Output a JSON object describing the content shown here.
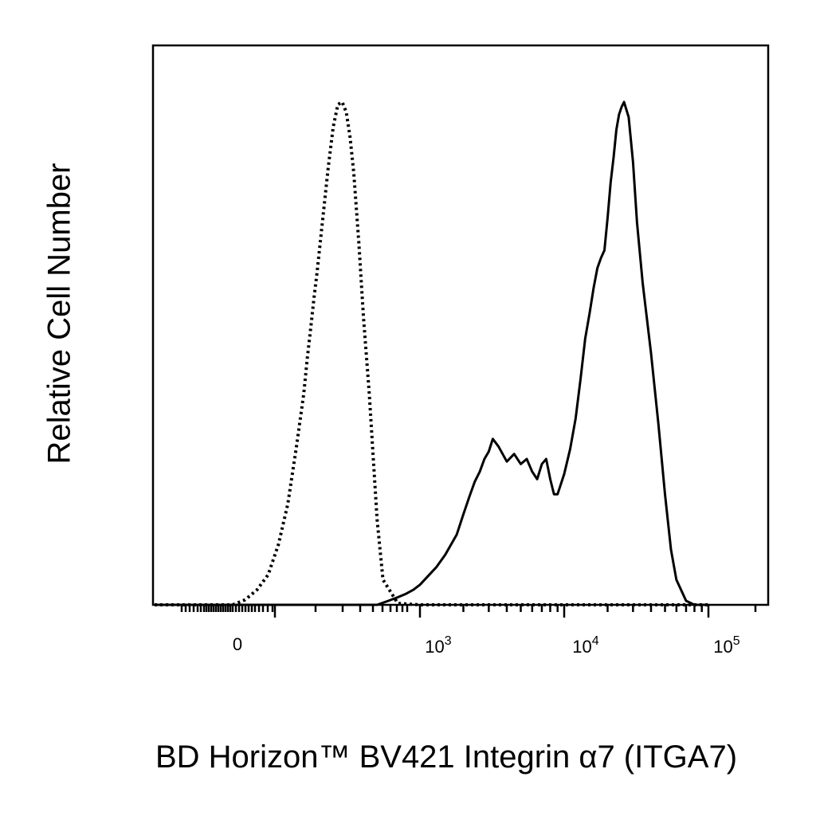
{
  "chart_data": {
    "type": "line",
    "title": "",
    "xlabel": "BD Horizon™ BV421 Integrin α7 (ITGA7)",
    "ylabel": "Relative Cell Number",
    "x_scale": "biexponential",
    "x_ticks": [
      {
        "label": "0",
        "value": 0
      },
      {
        "label": "10",
        "exp": "3",
        "value": 1000
      },
      {
        "label": "10",
        "exp": "4",
        "value": 10000
      },
      {
        "label": "10",
        "exp": "5",
        "value": 100000
      }
    ],
    "ylim": [
      0,
      100
    ],
    "grid": false,
    "legend": "none",
    "series": [
      {
        "style": "dotted",
        "color": "#000000",
        "x": [
          -800,
          -300,
          0,
          10,
          20,
          40,
          60,
          80,
          100,
          120,
          140,
          150,
          160,
          170,
          180,
          200,
          220,
          240,
          260,
          280,
          300,
          320,
          340,
          370,
          400,
          440,
          470,
          500,
          550,
          700,
          1000,
          3000,
          10000,
          50000,
          100000
        ],
        "y": [
          0,
          0,
          0,
          0.5,
          1,
          3,
          6,
          12,
          20,
          31,
          42,
          49,
          55,
          61,
          66,
          77,
          87,
          95,
          99.5,
          100,
          98,
          93,
          86,
          72,
          57,
          42,
          29,
          17,
          5,
          0.3,
          0,
          0,
          0,
          0,
          0
        ]
      },
      {
        "style": "solid",
        "color": "#000000",
        "x": [
          -800,
          0,
          300,
          500,
          600,
          700,
          800,
          900,
          1000,
          1300,
          1500,
          1800,
          2000,
          2200,
          2400,
          2600,
          2800,
          3000,
          3200,
          3500,
          4000,
          4500,
          5000,
          5500,
          6000,
          6500,
          7000,
          7500,
          8000,
          8500,
          9000,
          10000,
          11000,
          12000,
          13000,
          14000,
          15000,
          16000,
          17000,
          18000,
          19000,
          20000,
          21000,
          22000,
          23000,
          24000,
          25000,
          26000,
          28000,
          30000,
          32000,
          35000,
          40000,
          45000,
          50000,
          55000,
          60000,
          70000,
          80000,
          100000
        ],
        "y": [
          0,
          0,
          0,
          0,
          0.8,
          1.5,
          2.2,
          3,
          4,
          7.5,
          10,
          14,
          18,
          21.5,
          24.5,
          26.5,
          29,
          30.5,
          33,
          31.5,
          28.5,
          30,
          28,
          29,
          26.5,
          25,
          28,
          29,
          25,
          22,
          22,
          26,
          31,
          37,
          45,
          53,
          58,
          63,
          67,
          69,
          70.5,
          77,
          84,
          89,
          94.5,
          97.5,
          99,
          100,
          97,
          88,
          76,
          64,
          50,
          36,
          22,
          11,
          5,
          0.8,
          0,
          0
        ]
      }
    ]
  }
}
